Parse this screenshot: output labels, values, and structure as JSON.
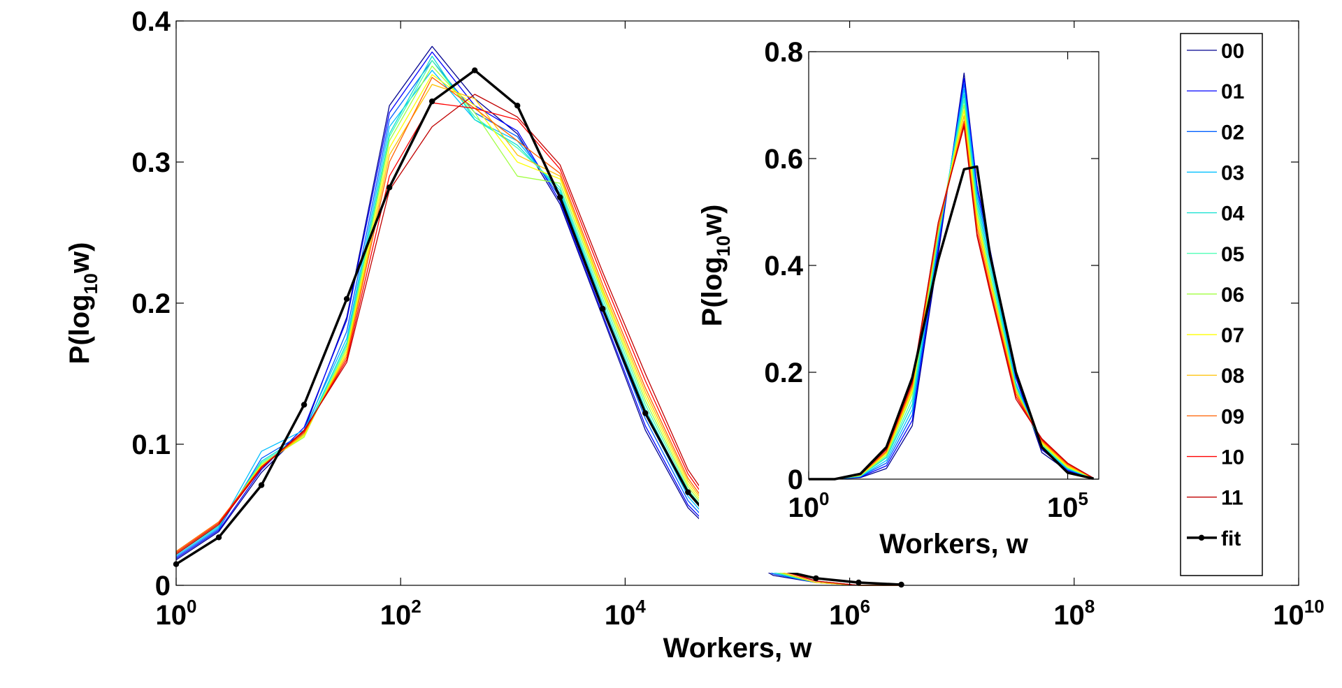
{
  "chart_data": [
    {
      "type": "line",
      "role": "main",
      "xlabel": "Workers, w",
      "ylabel_main": "P(log",
      "ylabel_sub": "10",
      "ylabel_tail": "w)",
      "xscale": "log",
      "xlim_exp": [
        0,
        10
      ],
      "ylim": [
        0,
        0.4
      ],
      "grid": false,
      "x_ticks": [
        {
          "base": "10",
          "exp": "0",
          "e": 0
        },
        {
          "base": "10",
          "exp": "2",
          "e": 2
        },
        {
          "base": "10",
          "exp": "4",
          "e": 4
        },
        {
          "base": "10",
          "exp": "6",
          "e": 6
        },
        {
          "base": "10",
          "exp": "8",
          "e": 8
        },
        {
          "base": "10",
          "exp": "10",
          "e": 10
        }
      ],
      "y_ticks": [
        {
          "label": "0",
          "v": 0
        },
        {
          "label": "0.1",
          "v": 0.1
        },
        {
          "label": "0.2",
          "v": 0.2
        },
        {
          "label": "0.3",
          "v": 0.3
        },
        {
          "label": "0.4",
          "v": 0.4
        }
      ],
      "x_log10": [
        0,
        0.38,
        0.76,
        1.14,
        1.52,
        1.9,
        2.28,
        2.66,
        3.04,
        3.42,
        3.8,
        4.18,
        4.56,
        4.94,
        5.32,
        5.7,
        6.08,
        6.46
      ],
      "series": [
        {
          "name": "00",
          "color": "#00008f",
          "values": [
            0.018,
            0.038,
            0.08,
            0.11,
            0.19,
            0.34,
            0.382,
            0.345,
            0.32,
            0.27,
            0.19,
            0.11,
            0.055,
            0.025,
            0.007,
            0.002,
            0,
            0
          ]
        },
        {
          "name": "01",
          "color": "#0000ff",
          "values": [
            0.019,
            0.039,
            0.082,
            0.112,
            0.188,
            0.335,
            0.378,
            0.34,
            0.322,
            0.272,
            0.192,
            0.113,
            0.057,
            0.026,
            0.008,
            0.002,
            0,
            0
          ]
        },
        {
          "name": "02",
          "color": "#0060ff",
          "values": [
            0.02,
            0.04,
            0.09,
            0.108,
            0.18,
            0.33,
            0.372,
            0.335,
            0.318,
            0.275,
            0.195,
            0.118,
            0.06,
            0.027,
            0.008,
            0.002,
            0,
            0
          ]
        },
        {
          "name": "03",
          "color": "#00bfff",
          "values": [
            0.021,
            0.041,
            0.095,
            0.11,
            0.175,
            0.325,
            0.365,
            0.33,
            0.315,
            0.278,
            0.198,
            0.122,
            0.063,
            0.028,
            0.009,
            0.002,
            0,
            0
          ]
        },
        {
          "name": "04",
          "color": "#10e0d0",
          "values": [
            0.022,
            0.042,
            0.088,
            0.107,
            0.172,
            0.32,
            0.375,
            0.33,
            0.312,
            0.28,
            0.2,
            0.125,
            0.066,
            0.029,
            0.009,
            0.002,
            0,
            0
          ]
        },
        {
          "name": "05",
          "color": "#40ffb0",
          "values": [
            0.022,
            0.043,
            0.087,
            0.106,
            0.17,
            0.318,
            0.372,
            0.332,
            0.31,
            0.282,
            0.203,
            0.128,
            0.068,
            0.03,
            0.01,
            0.002,
            0,
            0
          ]
        },
        {
          "name": "06",
          "color": "#a0ff40",
          "values": [
            0.023,
            0.044,
            0.086,
            0.105,
            0.168,
            0.315,
            0.368,
            0.335,
            0.29,
            0.285,
            0.206,
            0.131,
            0.07,
            0.031,
            0.01,
            0.002,
            0,
            0
          ]
        },
        {
          "name": "07",
          "color": "#ffff00",
          "values": [
            0.023,
            0.044,
            0.085,
            0.106,
            0.166,
            0.31,
            0.362,
            0.34,
            0.3,
            0.288,
            0.208,
            0.134,
            0.072,
            0.032,
            0.011,
            0.002,
            0,
            0
          ]
        },
        {
          "name": "08",
          "color": "#ffc000",
          "values": [
            0.024,
            0.045,
            0.084,
            0.107,
            0.164,
            0.305,
            0.355,
            0.345,
            0.305,
            0.29,
            0.21,
            0.137,
            0.074,
            0.033,
            0.011,
            0.002,
            0,
            0
          ]
        },
        {
          "name": "09",
          "color": "#ff6000",
          "values": [
            0.024,
            0.045,
            0.084,
            0.108,
            0.162,
            0.3,
            0.36,
            0.338,
            0.315,
            0.292,
            0.213,
            0.14,
            0.076,
            0.034,
            0.012,
            0.003,
            0,
            0
          ]
        },
        {
          "name": "10",
          "color": "#ff0000",
          "values": [
            0.023,
            0.044,
            0.084,
            0.109,
            0.16,
            0.29,
            0.342,
            0.338,
            0.33,
            0.295,
            0.218,
            0.145,
            0.079,
            0.036,
            0.012,
            0.003,
            0,
            0
          ]
        },
        {
          "name": "11",
          "color": "#c00000",
          "values": [
            0.022,
            0.043,
            0.083,
            0.11,
            0.158,
            0.28,
            0.325,
            0.348,
            0.332,
            0.298,
            0.222,
            0.15,
            0.082,
            0.038,
            0.013,
            0.003,
            0,
            0
          ]
        },
        {
          "name": "fit",
          "color": "#000000",
          "values": [
            0.015,
            0.034,
            0.071,
            0.128,
            0.203,
            0.282,
            0.343,
            0.365,
            0.34,
            0.275,
            0.196,
            0.122,
            0.066,
            0.031,
            0.012,
            0.005,
            0.002,
            0.0005
          ],
          "markers": true
        }
      ],
      "legend": {
        "placement": "right",
        "entries": [
          "00",
          "01",
          "02",
          "03",
          "04",
          "05",
          "06",
          "07",
          "08",
          "09",
          "10",
          "11",
          "fit"
        ]
      }
    },
    {
      "type": "line",
      "role": "inset",
      "xlabel": "Workers, w",
      "ylabel_main": "P(log",
      "ylabel_sub": "10",
      "ylabel_tail": "w)",
      "xscale": "log",
      "xlim_exp": [
        0,
        5.6
      ],
      "ylim": [
        0,
        0.8
      ],
      "grid": false,
      "x_ticks": [
        {
          "base": "10",
          "exp": "0",
          "e": 0
        },
        {
          "base": "10",
          "exp": "5",
          "e": 5
        }
      ],
      "y_ticks": [
        {
          "label": "0",
          "v": 0
        },
        {
          "label": "0.2",
          "v": 0.2
        },
        {
          "label": "0.4",
          "v": 0.4
        },
        {
          "label": "0.6",
          "v": 0.6
        },
        {
          "label": "0.8",
          "v": 0.8
        }
      ],
      "x_log10": [
        0,
        0.5,
        1,
        1.5,
        2,
        2.5,
        3,
        3.25,
        3.5,
        4,
        4.5,
        5,
        5.5
      ],
      "series": [
        {
          "name": "00",
          "color": "#00008f",
          "values": [
            0,
            0,
            0.003,
            0.02,
            0.1,
            0.42,
            0.76,
            0.55,
            0.43,
            0.19,
            0.05,
            0.015,
            0.001
          ]
        },
        {
          "name": "01",
          "color": "#0000ff",
          "values": [
            0,
            0,
            0.004,
            0.025,
            0.11,
            0.43,
            0.75,
            0.55,
            0.43,
            0.19,
            0.055,
            0.017,
            0.001
          ]
        },
        {
          "name": "02",
          "color": "#0060ff",
          "values": [
            0,
            0,
            0.005,
            0.03,
            0.12,
            0.44,
            0.74,
            0.54,
            0.42,
            0.18,
            0.058,
            0.018,
            0.001
          ]
        },
        {
          "name": "03",
          "color": "#00bfff",
          "values": [
            0,
            0,
            0.005,
            0.035,
            0.13,
            0.45,
            0.73,
            0.53,
            0.41,
            0.18,
            0.06,
            0.019,
            0.001
          ]
        },
        {
          "name": "04",
          "color": "#10e0d0",
          "values": [
            0,
            0,
            0.006,
            0.04,
            0.14,
            0.45,
            0.72,
            0.52,
            0.4,
            0.175,
            0.062,
            0.02,
            0.001
          ]
        },
        {
          "name": "05",
          "color": "#40ffb0",
          "values": [
            0,
            0,
            0.006,
            0.042,
            0.15,
            0.46,
            0.71,
            0.51,
            0.39,
            0.17,
            0.064,
            0.021,
            0.001
          ]
        },
        {
          "name": "06",
          "color": "#a0ff40",
          "values": [
            0,
            0,
            0.007,
            0.045,
            0.16,
            0.46,
            0.7,
            0.5,
            0.38,
            0.17,
            0.066,
            0.022,
            0.002
          ]
        },
        {
          "name": "07",
          "color": "#ffff00",
          "values": [
            0,
            0,
            0.007,
            0.048,
            0.165,
            0.47,
            0.69,
            0.49,
            0.375,
            0.165,
            0.068,
            0.023,
            0.002
          ]
        },
        {
          "name": "08",
          "color": "#ffc000",
          "values": [
            0,
            0,
            0.008,
            0.05,
            0.17,
            0.47,
            0.68,
            0.48,
            0.37,
            0.165,
            0.07,
            0.025,
            0.002
          ]
        },
        {
          "name": "09",
          "color": "#ff6000",
          "values": [
            0,
            0,
            0.008,
            0.052,
            0.175,
            0.47,
            0.67,
            0.47,
            0.36,
            0.16,
            0.072,
            0.027,
            0.002
          ]
        },
        {
          "name": "10",
          "color": "#ff0000",
          "values": [
            0,
            0,
            0.009,
            0.055,
            0.18,
            0.48,
            0.665,
            0.46,
            0.355,
            0.155,
            0.074,
            0.029,
            0.002
          ]
        },
        {
          "name": "11",
          "color": "#c00000",
          "values": [
            0,
            0,
            0.009,
            0.056,
            0.182,
            0.48,
            0.66,
            0.455,
            0.35,
            0.15,
            0.076,
            0.03,
            0.002
          ]
        },
        {
          "name": "fit",
          "color": "#000000",
          "values": [
            0,
            0,
            0.01,
            0.06,
            0.19,
            0.41,
            0.58,
            0.585,
            0.42,
            0.2,
            0.06,
            0.012,
            0.001
          ]
        }
      ]
    }
  ]
}
